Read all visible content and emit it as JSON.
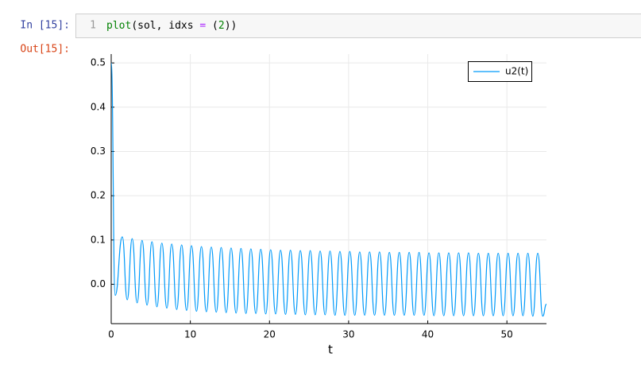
{
  "prompt_in": "In [15]:",
  "prompt_out": "Out[15]:",
  "line_number": "1",
  "code_tokens": [
    "plot",
    "(sol, idxs ",
    "=",
    " (",
    "2",
    "))"
  ],
  "chart_data": {
    "type": "line",
    "xlabel": "t",
    "x": [
      0,
      0.5,
      1.4,
      2.025,
      2.65,
      3.275,
      3.9,
      4.525,
      5.15,
      5.775,
      6.4,
      7.025,
      7.65,
      8.275,
      8.9,
      9.525,
      10.15,
      10.775,
      11.4,
      12.025,
      12.65,
      13.275,
      13.9,
      14.525,
      15.15,
      15.775,
      16.4,
      17.025,
      17.65,
      18.275,
      18.9,
      19.525,
      20.15,
      20.775,
      21.4,
      22.025,
      22.65,
      23.275,
      23.9,
      24.525,
      25.15,
      25.775,
      26.4,
      27.025,
      27.65,
      28.275,
      28.9,
      29.525,
      30.15,
      30.775,
      31.4,
      32.025,
      32.65,
      33.275,
      33.9,
      34.525,
      35.15,
      35.775,
      36.4,
      37.025,
      37.65,
      38.275,
      38.9,
      39.525,
      40.15,
      40.775,
      41.4,
      42.025,
      42.65,
      43.275,
      43.9,
      44.525,
      45.15,
      45.775,
      46.4,
      47.025,
      47.65,
      48.275,
      48.9,
      49.525,
      50.15,
      50.775,
      51.4,
      52.025,
      52.65,
      53.275,
      53.9,
      54.525,
      55
    ],
    "series": [
      {
        "name": "u2(t)",
        "color": "#009af9",
        "values": [
          0.5,
          -0.025,
          0.107,
          -0.035,
          0.103,
          -0.042,
          0.099,
          -0.047,
          0.096,
          -0.051,
          0.093,
          -0.054,
          0.091,
          -0.057,
          0.089,
          -0.059,
          0.087,
          -0.061,
          0.085,
          -0.062,
          0.084,
          -0.063,
          0.083,
          -0.064,
          0.082,
          -0.065,
          0.081,
          -0.066,
          0.08,
          -0.066,
          0.079,
          -0.067,
          0.078,
          -0.067,
          0.077,
          -0.068,
          0.077,
          -0.068,
          0.076,
          -0.069,
          0.076,
          -0.069,
          0.075,
          -0.069,
          0.075,
          -0.07,
          0.074,
          -0.07,
          0.074,
          -0.07,
          0.073,
          -0.07,
          0.073,
          -0.07,
          0.073,
          -0.07,
          0.072,
          -0.07,
          0.072,
          -0.07,
          0.072,
          -0.07,
          0.072,
          -0.07,
          0.071,
          -0.071,
          0.071,
          -0.071,
          0.071,
          -0.071,
          0.071,
          -0.071,
          0.071,
          -0.071,
          0.07,
          -0.071,
          0.07,
          -0.071,
          0.07,
          -0.071,
          0.07,
          -0.071,
          0.07,
          -0.071,
          0.07,
          -0.072,
          0.07,
          -0.072,
          -0.045
        ]
      }
    ],
    "xlim": [
      0,
      55
    ],
    "xticks": [
      0,
      10,
      20,
      30,
      40,
      50
    ],
    "ylim": [
      -0.089,
      0.52
    ],
    "yticks": [
      {
        "value": 0,
        "label": "0.0"
      },
      0.1,
      0.2,
      0.3,
      0.4,
      0.5
    ],
    "grid": true,
    "legend": "upper right"
  }
}
